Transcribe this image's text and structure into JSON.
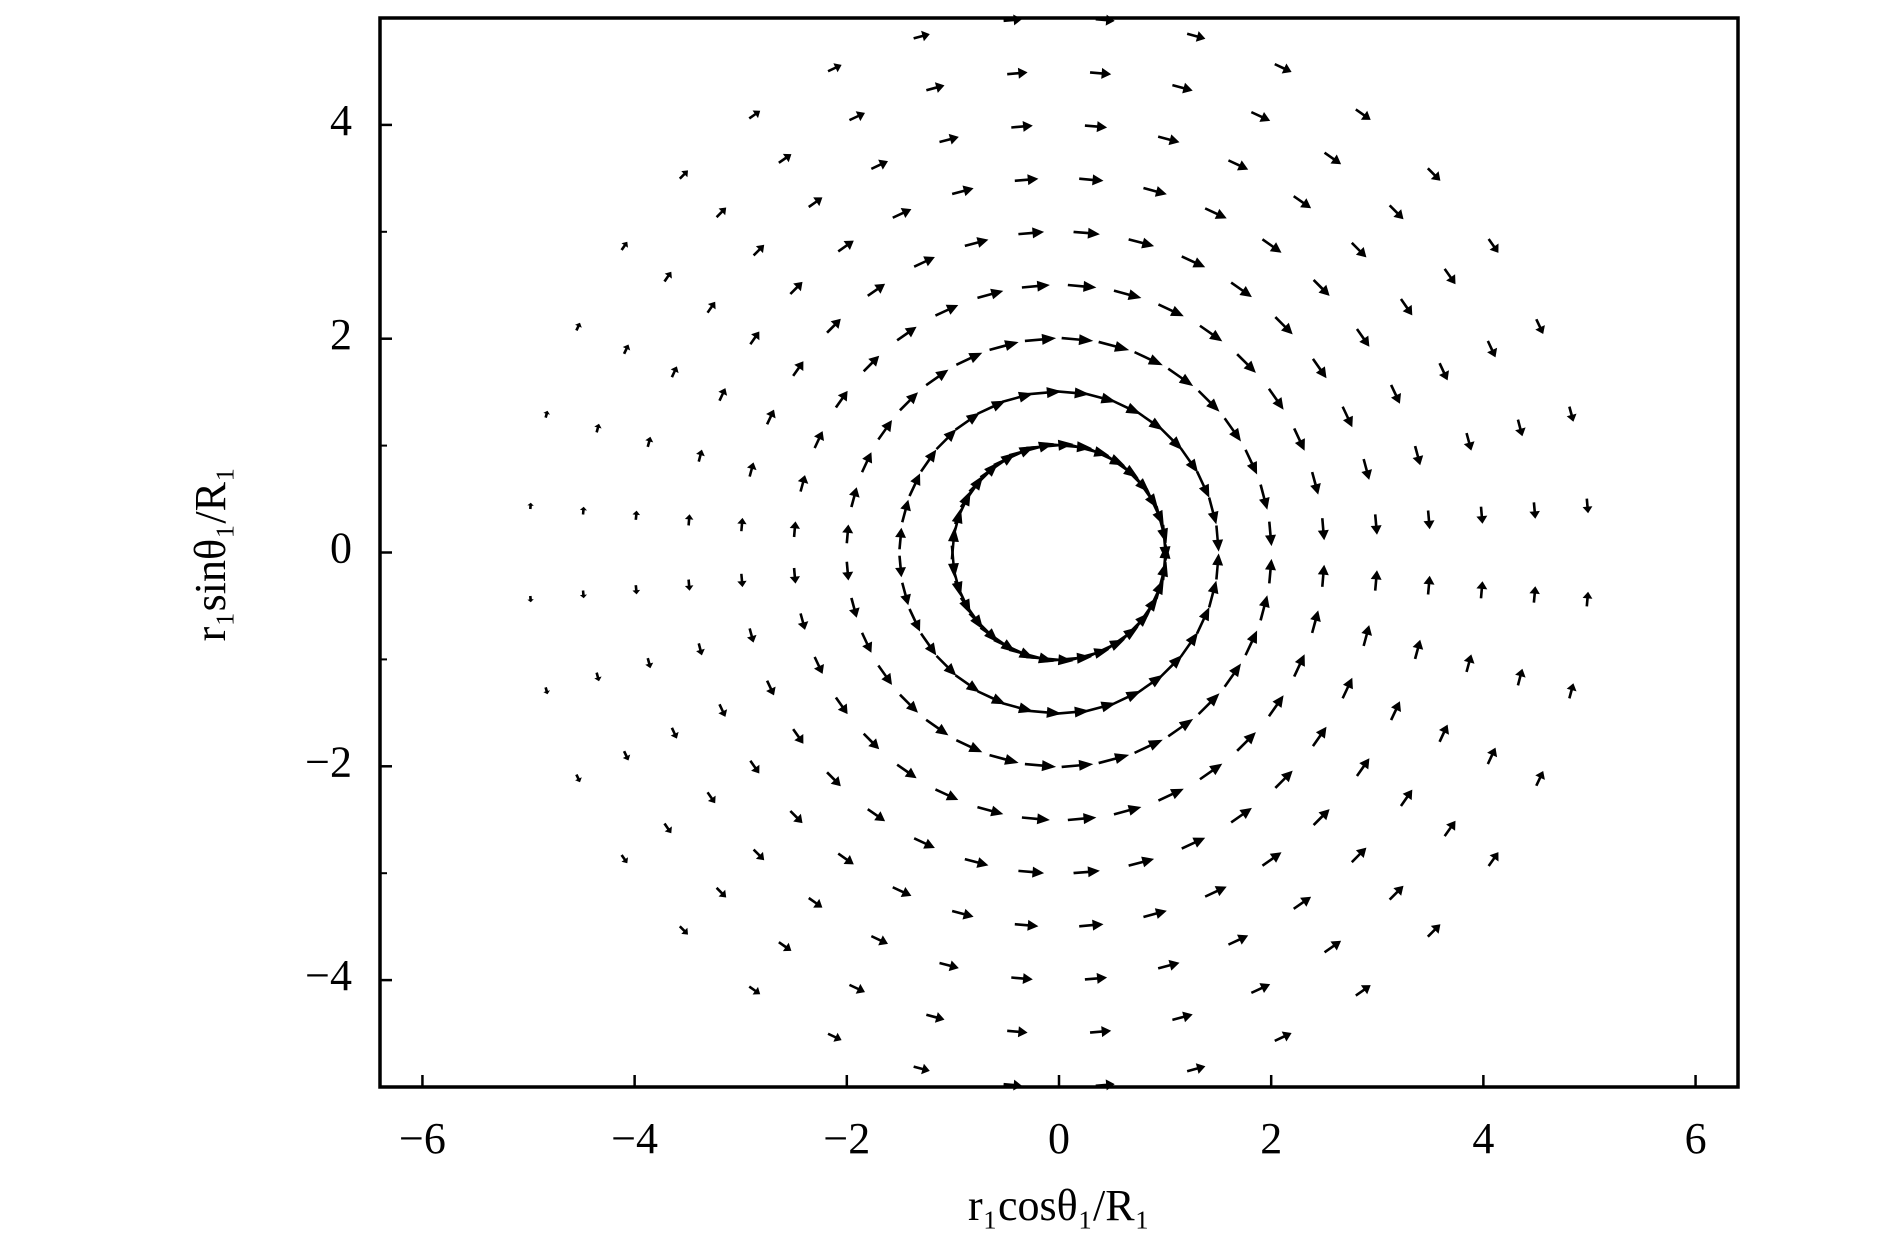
{
  "chart_data": {
    "type": "quiver",
    "xlabel": "r₁cosθ₁/R₁",
    "ylabel": "r₁sinθ₁/R₁",
    "xlim": [
      -6.4,
      6.4
    ],
    "ylim": [
      -5,
      5
    ],
    "xticks": [
      {
        "value": -6,
        "label": "−6"
      },
      {
        "value": -4,
        "label": "−4"
      },
      {
        "value": -2,
        "label": "−2"
      },
      0,
      2,
      4,
      6
    ],
    "yticks": [
      {
        "value": -4,
        "label": "−4"
      },
      {
        "value": -2,
        "label": "−2"
      },
      0,
      2,
      4
    ],
    "yminor_ticks": [
      -3,
      -1,
      1,
      3
    ],
    "color": "#000000",
    "points_per_ring": 36,
    "rings": [
      {
        "r": 1,
        "length": 0.45
      },
      {
        "r": 1.5,
        "length": 0.32
      },
      {
        "r": 2,
        "length": 0.3
      },
      {
        "r": 2.5,
        "length": 0.27
      },
      {
        "r": 3,
        "length": 0.25
      },
      {
        "r": 3.5,
        "length": 0.23
      },
      {
        "r": 4,
        "length": 0.21
      },
      {
        "r": 4.5,
        "length": 0.2
      },
      {
        "r": 5,
        "length": 0.18
      }
    ]
  }
}
